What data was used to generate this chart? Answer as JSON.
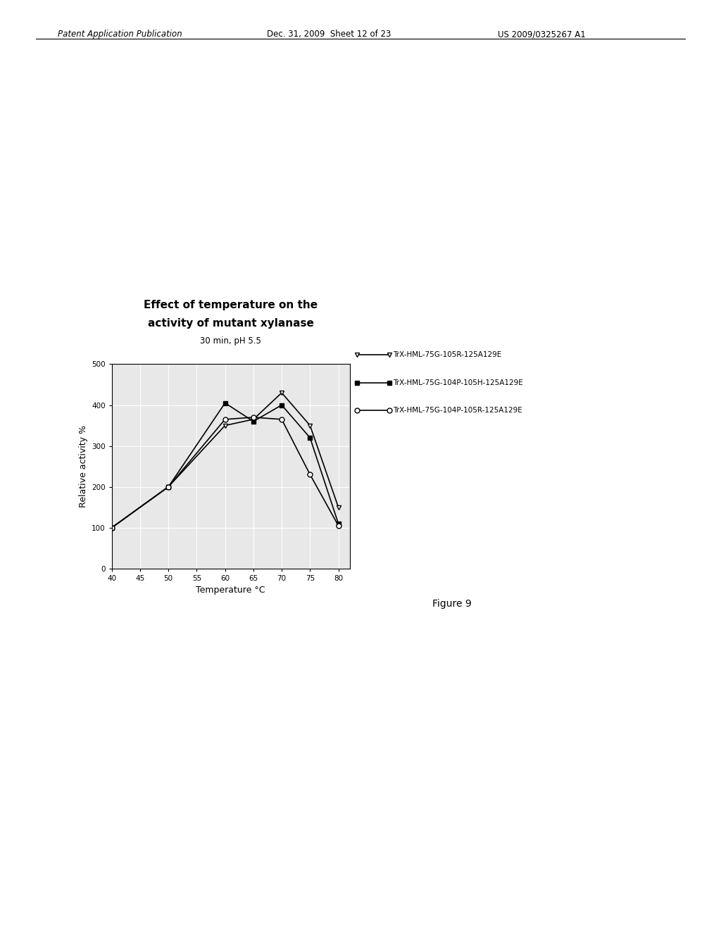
{
  "title_line1": "Effect of temperature on the",
  "title_line2": "activity of mutant xylanase",
  "subtitle": "30 min, pH 5.5",
  "xlabel": "Temperature °C",
  "ylabel": "Relative activity %",
  "figure_label": "Figure 9",
  "header_left": "Patent Application Publication",
  "header_center": "Dec. 31, 2009  Sheet 12 of 23",
  "header_right": "US 2009/0325267 A1",
  "xlim": [
    40,
    82
  ],
  "ylim": [
    0,
    500
  ],
  "xticks": [
    40,
    45,
    50,
    55,
    60,
    65,
    70,
    75,
    80
  ],
  "yticks": [
    0,
    100,
    200,
    300,
    400,
    500
  ],
  "series": [
    {
      "label": "TrX-HML-75G-105R-125A129E",
      "x": [
        40,
        50,
        60,
        65,
        70,
        75,
        80
      ],
      "y": [
        100,
        200,
        350,
        365,
        430,
        350,
        150
      ],
      "marker": "v",
      "marker_fill": "white",
      "marker_edge": "black",
      "linestyle": "-",
      "color": "black"
    },
    {
      "label": "TrX-HML-75G-104P-105H-125A129E",
      "x": [
        40,
        50,
        60,
        65,
        70,
        75,
        80
      ],
      "y": [
        100,
        200,
        405,
        360,
        400,
        320,
        110
      ],
      "marker": "s",
      "marker_fill": "black",
      "marker_edge": "black",
      "linestyle": "-",
      "color": "black"
    },
    {
      "label": "TrX-HML-75G-104P-105R-125A129E",
      "x": [
        40,
        50,
        60,
        65,
        70,
        75,
        80
      ],
      "y": [
        100,
        200,
        365,
        370,
        365,
        230,
        105
      ],
      "marker": "o",
      "marker_fill": "white",
      "marker_edge": "black",
      "linestyle": "-",
      "color": "black"
    }
  ],
  "background_color": "#ffffff",
  "plot_bg_color": "#e8e8e8"
}
